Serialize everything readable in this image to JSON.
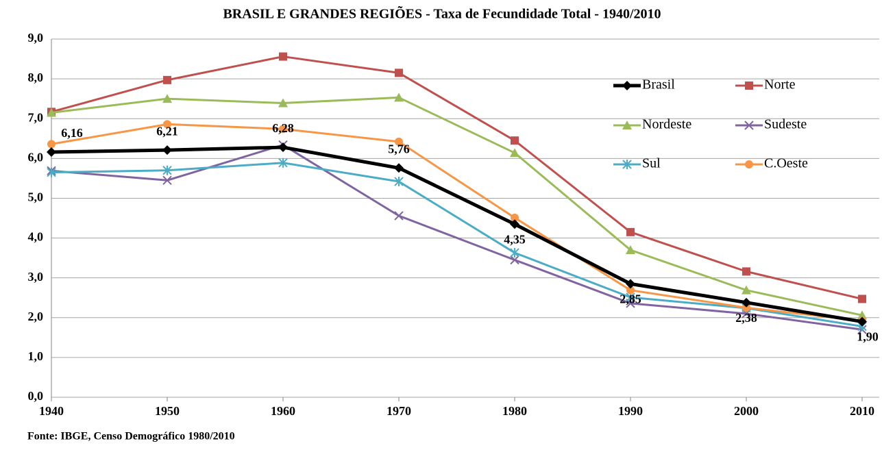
{
  "chart_data": {
    "type": "line",
    "title": "BRASIL E GRANDES REGIÕES - Taxa de Fecundidade Total - 1940/2010",
    "source": "Fonte: IBGE, Censo Demográfico 1980/2010",
    "x": [
      1940,
      1950,
      1960,
      1970,
      1980,
      1990,
      2000,
      2010
    ],
    "xlim": [
      1940,
      2010
    ],
    "xticks": [
      1940,
      1950,
      1960,
      1970,
      1980,
      1990,
      2000,
      2010
    ],
    "ylim": [
      0,
      9
    ],
    "yticks": [
      {
        "value": 0,
        "label": "0,0"
      },
      {
        "value": 1,
        "label": "1,0"
      },
      {
        "value": 2,
        "label": "2,0"
      },
      {
        "value": 3,
        "label": "3,0"
      },
      {
        "value": 4,
        "label": "4,0"
      },
      {
        "value": 5,
        "label": "5,0"
      },
      {
        "value": 6,
        "label": "6,0"
      },
      {
        "value": 7,
        "label": "7,0"
      },
      {
        "value": 8,
        "label": "8,0"
      },
      {
        "value": 9,
        "label": "9,0"
      }
    ],
    "grid": true,
    "legend": "upper right",
    "series": [
      {
        "name": "Brasil",
        "color": "#000000",
        "marker": "diamond",
        "values": [
          6.16,
          6.21,
          6.28,
          5.76,
          4.35,
          2.85,
          2.38,
          1.9
        ],
        "value_labels": [
          "6,16",
          "6,21",
          "6,28",
          "5,76",
          "4,35",
          "2,85",
          "2,38",
          "1,90"
        ]
      },
      {
        "name": "Norte",
        "color": "#c0504d",
        "marker": "square",
        "values": [
          7.17,
          7.97,
          8.56,
          8.15,
          6.45,
          4.15,
          3.16,
          2.47
        ]
      },
      {
        "name": "Nordeste",
        "color": "#9bbb59",
        "marker": "triangle",
        "values": [
          7.15,
          7.5,
          7.39,
          7.53,
          6.14,
          3.7,
          2.69,
          2.06
        ]
      },
      {
        "name": "Sudeste",
        "color": "#8064a2",
        "marker": "x",
        "values": [
          5.69,
          5.45,
          6.34,
          4.56,
          3.45,
          2.36,
          2.1,
          1.7
        ]
      },
      {
        "name": "Sul",
        "color": "#4bacc6",
        "marker": "star",
        "values": [
          5.65,
          5.7,
          5.89,
          5.42,
          3.63,
          2.51,
          2.24,
          1.78
        ]
      },
      {
        "name": "C.Oeste",
        "color": "#f79646",
        "marker": "circle",
        "values": [
          6.36,
          6.86,
          6.74,
          6.42,
          4.51,
          2.69,
          2.25,
          1.92
        ]
      }
    ]
  }
}
